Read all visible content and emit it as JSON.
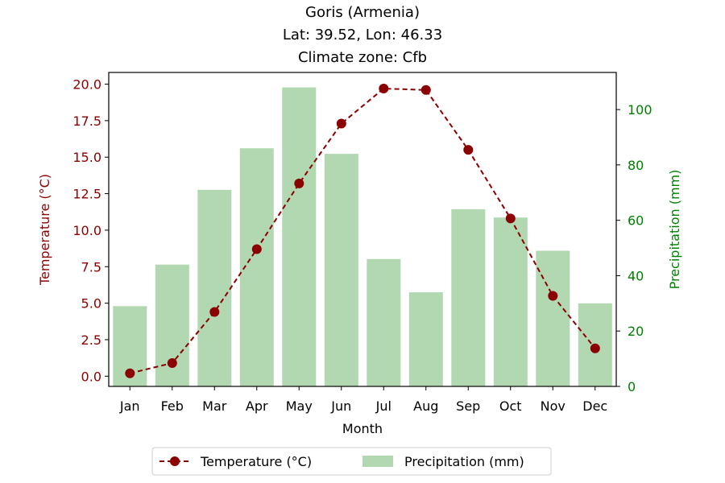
{
  "chart_data": {
    "type": "bar+line",
    "title": [
      "Goris (Armenia)",
      "Lat: 39.52, Lon: 46.33",
      "Climate zone: Cfb"
    ],
    "xlabel": "Month",
    "categories": [
      "Jan",
      "Feb",
      "Mar",
      "Apr",
      "May",
      "Jun",
      "Jul",
      "Aug",
      "Sep",
      "Oct",
      "Nov",
      "Dec"
    ],
    "series": [
      {
        "name": "Temperature (°C)",
        "type": "line",
        "axis": "left",
        "color": "#8b0000",
        "values": [
          0.2,
          0.9,
          4.4,
          8.7,
          13.2,
          17.3,
          19.7,
          19.6,
          15.5,
          10.8,
          5.5,
          1.9
        ]
      },
      {
        "name": "Precipitation (mm)",
        "type": "bar",
        "axis": "right",
        "color": "#b2d8b2",
        "values": [
          29,
          44,
          71,
          86,
          108,
          84,
          46,
          34,
          64,
          61,
          49,
          30
        ]
      }
    ],
    "y_left": {
      "label": "Temperature (°C)",
      "color": "#8b0000",
      "ylim": [
        -0.7,
        20.8
      ],
      "ticks": [
        0.0,
        2.5,
        5.0,
        7.5,
        10.0,
        12.5,
        15.0,
        17.5,
        20.0
      ],
      "tick_labels": [
        "0.0",
        "2.5",
        "5.0",
        "7.5",
        "10.0",
        "12.5",
        "15.0",
        "17.5",
        "20.0"
      ]
    },
    "y_right": {
      "label": "Precipitation (mm)",
      "color": "#008000",
      "ylim": [
        0,
        113.4
      ],
      "ticks": [
        0,
        20,
        40,
        60,
        80,
        100
      ],
      "tick_labels": [
        "0",
        "20",
        "40",
        "60",
        "80",
        "100"
      ]
    },
    "grid": false,
    "legend": {
      "placement": "bottom-center",
      "entries": [
        "Temperature (°C)",
        "Precipitation (mm)"
      ]
    }
  }
}
